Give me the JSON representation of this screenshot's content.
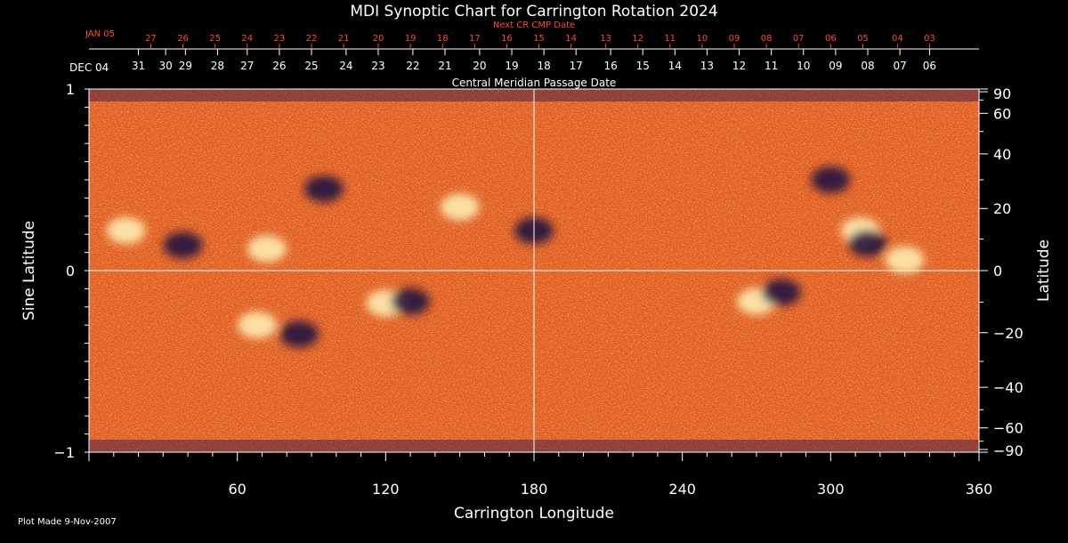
{
  "chart_data": {
    "type": "heatmap",
    "title": "MDI Synoptic Chart for Carrington Rotation 2024",
    "xlabel": "Carrington Longitude",
    "ylabel_left": "Sine Latitude",
    "ylabel_right": "Latitude",
    "xlim": [
      0,
      360
    ],
    "ylim": [
      -1,
      1
    ],
    "x_ticks": [
      "60",
      "120",
      "180",
      "240",
      "300",
      "360"
    ],
    "x_tick_values": [
      60,
      120,
      180,
      240,
      300,
      360
    ],
    "left_y_ticks": [
      {
        "label": "1",
        "value": 1
      },
      {
        "label": "0",
        "value": 0
      },
      {
        "label": "−1",
        "value": -1
      }
    ],
    "right_y_ticks": [
      {
        "label": "90",
        "deg": 90
      },
      {
        "label": "60",
        "deg": 60
      },
      {
        "label": "40",
        "deg": 40
      },
      {
        "label": "20",
        "deg": 20
      },
      {
        "label": "0",
        "deg": 0
      },
      {
        "label": "−20",
        "deg": -20
      },
      {
        "label": "−40",
        "deg": -40
      },
      {
        "label": "−60",
        "deg": -60
      },
      {
        "label": "−90",
        "deg": -90
      }
    ],
    "cmp_axis_label": "Central Meridian Passage Date",
    "cmp_start_label": "DEC 04",
    "cmp_dates": [
      {
        "label": "31",
        "lon": 20
      },
      {
        "label": "30",
        "lon": 31
      },
      {
        "label": "29",
        "lon": 39
      },
      {
        "label": "28",
        "lon": 52
      },
      {
        "label": "27",
        "lon": 64
      },
      {
        "label": "26",
        "lon": 77
      },
      {
        "label": "25",
        "lon": 90
      },
      {
        "label": "24",
        "lon": 104
      },
      {
        "label": "23",
        "lon": 117
      },
      {
        "label": "22",
        "lon": 131
      },
      {
        "label": "21",
        "lon": 144
      },
      {
        "label": "20",
        "lon": 158
      },
      {
        "label": "19",
        "lon": 171
      },
      {
        "label": "18",
        "lon": 184
      },
      {
        "label": "17",
        "lon": 197
      },
      {
        "label": "16",
        "lon": 211
      },
      {
        "label": "15",
        "lon": 224
      },
      {
        "label": "14",
        "lon": 237
      },
      {
        "label": "13",
        "lon": 250
      },
      {
        "label": "12",
        "lon": 263
      },
      {
        "label": "11",
        "lon": 276
      },
      {
        "label": "10",
        "lon": 289
      },
      {
        "label": "09",
        "lon": 302
      },
      {
        "label": "08",
        "lon": 315
      },
      {
        "label": "07",
        "lon": 328
      },
      {
        "label": "06",
        "lon": 340
      }
    ],
    "next_cr_label": "Next CR CMP Date",
    "next_cr_start_label": "JAN 05",
    "next_cr_dates": [
      {
        "label": "27",
        "lon": 25
      },
      {
        "label": "26",
        "lon": 38
      },
      {
        "label": "25",
        "lon": 51
      },
      {
        "label": "24",
        "lon": 64
      },
      {
        "label": "23",
        "lon": 77
      },
      {
        "label": "22",
        "lon": 90
      },
      {
        "label": "21",
        "lon": 103
      },
      {
        "label": "20",
        "lon": 117
      },
      {
        "label": "19",
        "lon": 130
      },
      {
        "label": "18",
        "lon": 143
      },
      {
        "label": "17",
        "lon": 156
      },
      {
        "label": "16",
        "lon": 169
      },
      {
        "label": "15",
        "lon": 182
      },
      {
        "label": "14",
        "lon": 195
      },
      {
        "label": "13",
        "lon": 209
      },
      {
        "label": "12",
        "lon": 222
      },
      {
        "label": "11",
        "lon": 235
      },
      {
        "label": "10",
        "lon": 248
      },
      {
        "label": "09",
        "lon": 261
      },
      {
        "label": "08",
        "lon": 274
      },
      {
        "label": "07",
        "lon": 287
      },
      {
        "label": "06",
        "lon": 300
      },
      {
        "label": "05",
        "lon": 313
      },
      {
        "label": "04",
        "lon": 327
      },
      {
        "label": "03",
        "lon": 340
      }
    ],
    "footer": "Plot Made  9-Nov-2007",
    "grid": "crosshair at lon 180 and sine latitude 0",
    "colors": {
      "background": "#000000",
      "field_base": "#e2561c",
      "positive_polarity": "#fff4b8",
      "negative_polarity": "#1a1040",
      "next_cr_text": "#ff4a2a"
    },
    "active_regions": [
      {
        "polarity": "positive",
        "lon": 15,
        "sinlat": 0.22
      },
      {
        "polarity": "negative",
        "lon": 38,
        "sinlat": 0.14
      },
      {
        "polarity": "positive",
        "lon": 72,
        "sinlat": 0.12
      },
      {
        "polarity": "negative",
        "lon": 95,
        "sinlat": 0.45
      },
      {
        "polarity": "positive",
        "lon": 150,
        "sinlat": 0.35
      },
      {
        "polarity": "negative",
        "lon": 180,
        "sinlat": 0.22
      },
      {
        "polarity": "positive",
        "lon": 68,
        "sinlat": -0.3
      },
      {
        "polarity": "negative",
        "lon": 85,
        "sinlat": -0.35
      },
      {
        "polarity": "positive",
        "lon": 120,
        "sinlat": -0.18
      },
      {
        "polarity": "negative",
        "lon": 130,
        "sinlat": -0.17
      },
      {
        "polarity": "positive",
        "lon": 270,
        "sinlat": -0.17
      },
      {
        "polarity": "negative",
        "lon": 280,
        "sinlat": -0.12
      },
      {
        "polarity": "positive",
        "lon": 312,
        "sinlat": 0.22
      },
      {
        "polarity": "negative",
        "lon": 315,
        "sinlat": 0.15
      },
      {
        "polarity": "positive",
        "lon": 330,
        "sinlat": 0.06
      },
      {
        "polarity": "negative",
        "lon": 300,
        "sinlat": 0.5
      }
    ]
  }
}
